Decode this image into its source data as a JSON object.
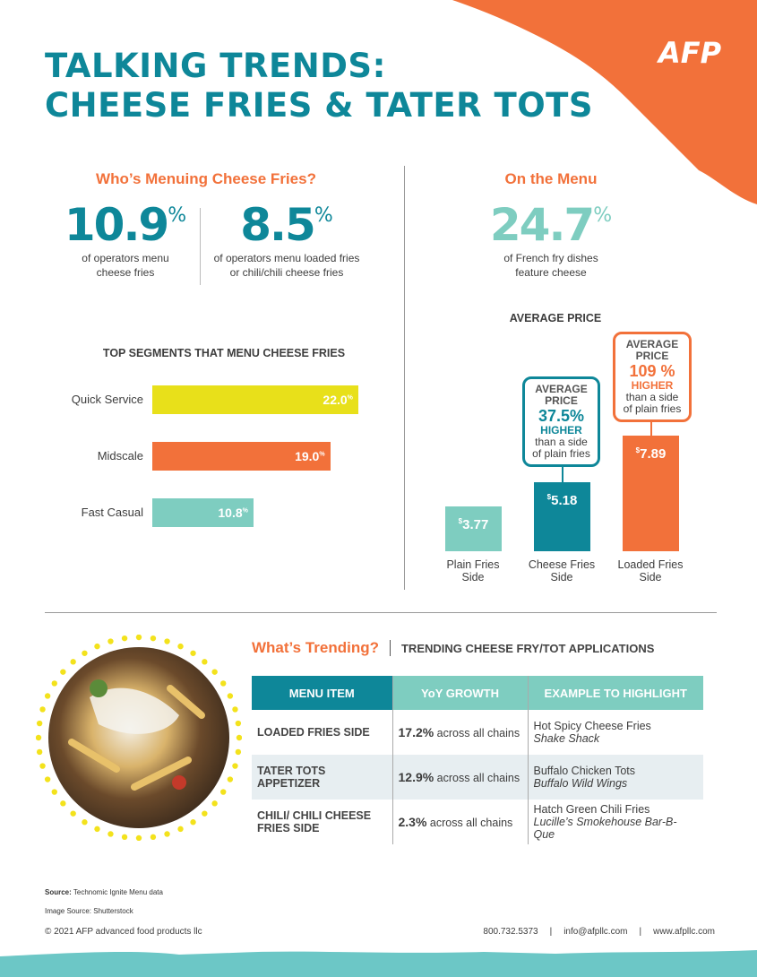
{
  "colors": {
    "teal_dark": "#0e8799",
    "teal_light": "#7ecdc0",
    "orange": "#f2713a",
    "yellow": "#e8e01a",
    "footer_band": "#6cc7c6"
  },
  "header": {
    "title_line1": "TALKING TRENDS:",
    "title_line2": "CHEESE FRIES & TATER TOTS",
    "logo_text": "AFP"
  },
  "who": {
    "heading": "Who’s Menuing Cheese Fries?",
    "stat1": {
      "value": "10.9",
      "unit": "%",
      "caption_line1": "of operators menu",
      "caption_line2": "cheese fries"
    },
    "stat2": {
      "value": "8.5",
      "unit": "%",
      "caption_line1": "of operators menu loaded fries",
      "caption_line2": "or chili/chili cheese fries"
    }
  },
  "menu": {
    "heading": "On the Menu",
    "stat": {
      "value": "24.7",
      "unit": "%",
      "caption_line1": "of French fry dishes",
      "caption_line2": "feature cheese"
    }
  },
  "chart_data": [
    {
      "type": "bar",
      "orientation": "horizontal",
      "title": "TOP SEGMENTS THAT MENU CHEESE FRIES",
      "categories": [
        "Quick Service",
        "Midscale",
        "Fast Casual"
      ],
      "values": [
        22.0,
        19.0,
        10.8
      ],
      "value_labels": [
        "22.0",
        "19.0",
        "10.8"
      ],
      "unit": "%",
      "colors": [
        "#e8e01a",
        "#f2713a",
        "#7ecdc0"
      ]
    },
    {
      "type": "bar",
      "title": "AVERAGE PRICE",
      "categories": [
        "Plain Fries Side",
        "Cheese Fries Side",
        "Loaded Fries Side"
      ],
      "category_lines": [
        [
          "Plain Fries",
          "Side"
        ],
        [
          "Cheese Fries",
          "Side"
        ],
        [
          "Loaded Fries",
          "Side"
        ]
      ],
      "values": [
        3.77,
        5.18,
        7.89
      ],
      "value_labels": [
        "3.77",
        "5.18",
        "7.89"
      ],
      "currency": "$",
      "colors": [
        "#7ecdc0",
        "#0e8799",
        "#f2713a"
      ],
      "annotations": [
        {
          "category": "Cheese Fries Side",
          "line1": "AVERAGE",
          "line2": "PRICE",
          "pct": "37.5%",
          "higher": "HIGHER",
          "line3": "than a side",
          "line4": "of plain fries"
        },
        {
          "category": "Loaded Fries Side",
          "line1": "AVERAGE",
          "line2": "PRICE",
          "pct": "109 %",
          "higher": "HIGHER",
          "line3": "than a side",
          "line4": "of plain fries"
        }
      ]
    }
  ],
  "trending": {
    "heading": "What’s Trending?",
    "subheading": "TRENDING CHEESE FRY/TOT APPLICATIONS",
    "columns": [
      "MENU ITEM",
      "YoY GROWTH",
      "EXAMPLE TO HIGHLIGHT"
    ],
    "rows": [
      {
        "item": "LOADED FRIES SIDE",
        "growth": "17.2%",
        "growth_note": " across all chains",
        "example": "Hot Spicy Cheese Fries",
        "chain": "Shake Shack"
      },
      {
        "item": "TATER TOTS APPETIZER",
        "growth": "12.9%",
        "growth_note": " across all chains",
        "example": "Buffalo Chicken Tots",
        "chain": "Buffalo Wild Wings"
      },
      {
        "item": "CHILI/ CHILI CHEESE FRIES SIDE",
        "growth": "2.3%",
        "growth_note": " across all chains",
        "example": "Hatch Green Chili Fries",
        "chain": "Lucille’s Smokehouse Bar-B-Que"
      }
    ]
  },
  "footer": {
    "source_label": "Source:",
    "source": " Technomic Ignite Menu data",
    "image_source": "Image Source: Shutterstock",
    "copyright": "© 2021  AFP advanced food products llc",
    "phone": "800.732.5373",
    "email": "info@afpllc.com",
    "website": "www.afpllc.com",
    "sep": "|"
  }
}
